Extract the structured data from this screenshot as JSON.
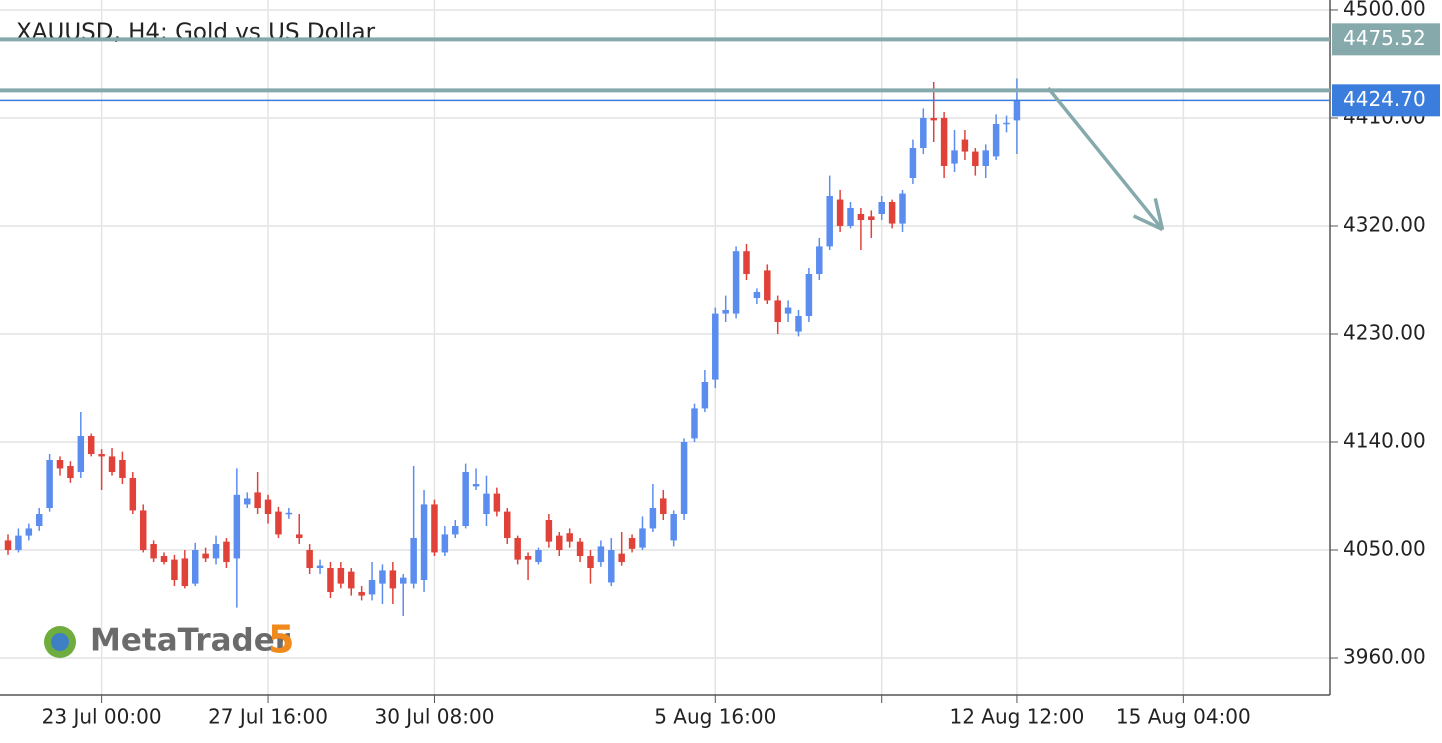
{
  "chart_data": {
    "type": "candlestick",
    "title": "XAUUSD, H4: Gold vs US Dollar",
    "up_color": "#5b8def",
    "down_color": "#e0423a",
    "grid": true,
    "open": [
      4058,
      4050,
      4062,
      4070,
      4085,
      4125,
      4120,
      4115,
      4145,
      4130,
      4128,
      4125,
      4110,
      4083,
      4055,
      4045,
      4042,
      4043,
      4022,
      4047,
      4043,
      4057,
      4043,
      4088,
      4098,
      4092,
      4082,
      4080,
      4063,
      4050,
      4035,
      4035,
      4035,
      4032,
      4015,
      4013,
      4022,
      4033,
      4022,
      4022,
      4025,
      4088,
      4048,
      4063,
      4070,
      4103,
      4080,
      4097,
      4082,
      4060,
      4045,
      4040,
      4075,
      4062,
      4064,
      4057,
      4045,
      4040,
      4023,
      4047,
      4060,
      4052,
      4068,
      4093,
      4058,
      4080,
      4143,
      4168,
      4192,
      4247,
      4247,
      4299,
      4260,
      4283,
      4258,
      4247,
      4232,
      4245,
      4280,
      4303,
      4342,
      4320,
      4330,
      4328,
      4330,
      4340,
      4322,
      4360,
      4385,
      4410,
      4410,
      4372,
      4392,
      4382,
      4370,
      4378,
      4405,
      4408
    ],
    "high": [
      4063,
      4068,
      4072,
      4085,
      4130,
      4128,
      4124,
      4165,
      4147,
      4134,
      4135,
      4132,
      4115,
      4088,
      4058,
      4048,
      4046,
      4050,
      4056,
      4052,
      4062,
      4060,
      4118,
      4098,
      4115,
      4096,
      4086,
      4085,
      4080,
      4055,
      4042,
      4040,
      4040,
      4035,
      4020,
      4040,
      4038,
      4040,
      4030,
      4120,
      4100,
      4092,
      4070,
      4075,
      4122,
      4118,
      4112,
      4102,
      4085,
      4062,
      4048,
      4052,
      4080,
      4065,
      4068,
      4060,
      4050,
      4058,
      4060,
      4065,
      4063,
      4078,
      4105,
      4100,
      4083,
      4143,
      4172,
      4200,
      4252,
      4262,
      4303,
      4305,
      4268,
      4288,
      4262,
      4258,
      4250,
      4285,
      4310,
      4362,
      4350,
      4340,
      4335,
      4333,
      4345,
      4342,
      4350,
      4392,
      4418,
      4440,
      4415,
      4400,
      4400,
      4385,
      4388,
      4413,
      4412,
      4443
    ],
    "low": [
      4046,
      4048,
      4058,
      4066,
      4082,
      4112,
      4106,
      4110,
      4128,
      4100,
      4112,
      4105,
      4080,
      4048,
      4040,
      4038,
      4020,
      4018,
      4020,
      4040,
      4038,
      4035,
      4002,
      4085,
      4080,
      4072,
      4060,
      4076,
      4055,
      4030,
      4030,
      4010,
      4018,
      4012,
      4008,
      4008,
      4005,
      4005,
      3995,
      4018,
      4015,
      4045,
      4045,
      4060,
      4068,
      4100,
      4070,
      4078,
      4055,
      4038,
      4025,
      4038,
      4052,
      4045,
      4052,
      4040,
      4022,
      4036,
      4020,
      4037,
      4048,
      4050,
      4065,
      4075,
      4053,
      4075,
      4140,
      4165,
      4185,
      4240,
      4243,
      4275,
      4255,
      4255,
      4230,
      4240,
      4228,
      4240,
      4275,
      4300,
      4315,
      4318,
      4300,
      4310,
      4325,
      4318,
      4315,
      4355,
      4380,
      4390,
      4360,
      4365,
      4375,
      4362,
      4360,
      4375,
      4398,
      4380
    ],
    "close": [
      4050,
      4062,
      4068,
      4080,
      4125,
      4118,
      4110,
      4145,
      4130,
      4128,
      4115,
      4110,
      4083,
      4050,
      4043,
      4040,
      4025,
      4020,
      4050,
      4043,
      4055,
      4040,
      4096,
      4093,
      4085,
      4080,
      4063,
      4081,
      4060,
      4035,
      4037,
      4015,
      4022,
      4018,
      4012,
      4025,
      4033,
      4018,
      4027,
      4060,
      4088,
      4048,
      4063,
      4070,
      4115,
      4105,
      4097,
      4082,
      4060,
      4042,
      4042,
      4050,
      4057,
      4050,
      4057,
      4045,
      4035,
      4053,
      4050,
      4040,
      4051,
      4068,
      4085,
      4080,
      4080,
      4140,
      4168,
      4190,
      4247,
      4250,
      4299,
      4280,
      4265,
      4258,
      4240,
      4252,
      4245,
      4280,
      4303,
      4345,
      4320,
      4335,
      4325,
      4325,
      4340,
      4322,
      4347,
      4385,
      4410,
      4408,
      4370,
      4383,
      4382,
      4370,
      4383,
      4405,
      4406,
      4425
    ],
    "xlim": [
      -0.77,
      127.1
    ],
    "xticks": [
      {
        "value": 9,
        "label": "23 Jul 00:00"
      },
      {
        "value": 25,
        "label": "27 Jul 16:00"
      },
      {
        "value": 41,
        "label": "30 Jul 08:00"
      },
      {
        "value": 68,
        "label": "5 Aug 16:00"
      },
      {
        "value": 84,
        "label": null
      },
      {
        "value": 97,
        "label": "12 Aug 12:00"
      },
      {
        "value": 113,
        "label": "15 Aug 04:00"
      }
    ],
    "ylim": [
      3929.2,
      4508.3
    ],
    "yticks": [
      {
        "value": 3960,
        "label": "3960.00"
      },
      {
        "value": 4050,
        "label": "4050.00"
      },
      {
        "value": 4140,
        "label": "4140.00"
      },
      {
        "value": 4230,
        "label": "4230.00"
      },
      {
        "value": 4320,
        "label": "4320.00"
      },
      {
        "value": 4410,
        "label": "4410.00"
      },
      {
        "value": 4500,
        "label": "4500.00"
      }
    ],
    "levels": [
      {
        "value": 4475.52,
        "color": "#86a9ac"
      },
      {
        "value": 4433,
        "color": "#86a9ac"
      }
    ],
    "last_price": {
      "value": 4424.7,
      "label": "4424.70",
      "color": "#3b7ddd"
    },
    "arrow": {
      "x": [
        100,
        111
      ],
      "y": [
        4435,
        4317
      ],
      "color": "#86a9ac"
    },
    "logo": {
      "text": "MetaTrader",
      "version": "5"
    }
  }
}
